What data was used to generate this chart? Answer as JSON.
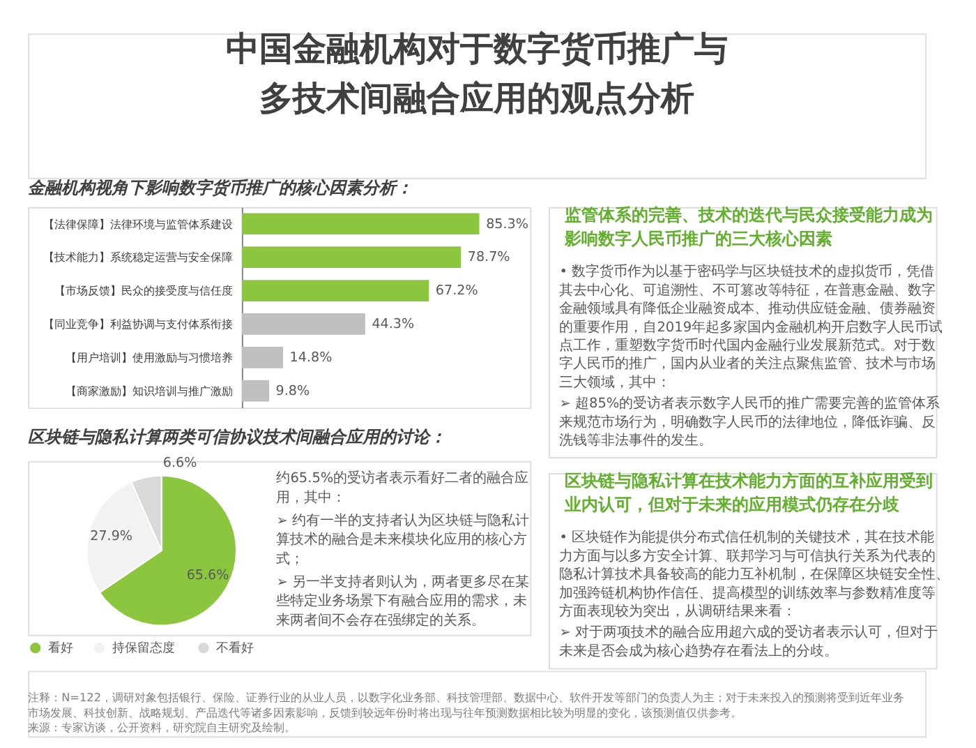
{
  "chart_data": [
    {
      "type": "bar",
      "orientation": "horizontal",
      "title": "中国金融机构对于数字货币推广与多技术间融合应用的观点分析",
      "subtitle": "金融机构视角下影响数字货币推广的核心因素分析：",
      "categories": [
        "【法律保障】法律环境与监管体系建设",
        "【技术能力】系统稳定运营与安全保障",
        "【市场反馈】民众的接受度与信任度",
        "【同业竞争】利益协调与支付体系衔接",
        "【用户培训】使用激励与习惯培养",
        "【商家激励】知识培训与推广激励"
      ],
      "values": [
        85.3,
        78.7,
        67.2,
        44.3,
        14.8,
        9.8
      ],
      "colors": [
        "#8cc63f",
        "#8cc63f",
        "#8cc63f",
        "#bfbfbf",
        "#bfbfbf",
        "#bfbfbf"
      ],
      "value_labels": [
        "85.3%",
        "78.7%",
        "67.2%",
        "44.3%",
        "14.8%",
        "9.8%"
      ],
      "tick_labels": "y",
      "annotations": [
        "注释：N=122，调研对象包括银行、保险、证券行业的从业人员，以数字化业务部、科技管理部、数据中心、软件开发等部门的负责人为主；对于未来投入的预测将受到近年业务市场发展、科技创新、战略规划、产品迭代等诸多因素影响，反馈到较远年份时将出现与往年预测数据相比较为明显的变化，该预测值仅供参考。",
        "来源：专家访谈，公开资料，研究院自主研究及绘制。"
      ]
    },
    {
      "type": "pie",
      "title": "区块链与隐私计算两类可信协议技术间融合应用的讨论：",
      "categories": [
        "看好",
        "持保留态度",
        "不看好"
      ],
      "values": [
        65.6,
        27.9,
        6.6
      ],
      "colors": [
        "#8cc63f",
        "#f2f2f2",
        "#d9d9d9"
      ],
      "value_labels": [
        "65.6%",
        "27.9%",
        "6.6%"
      ],
      "legend": "bottom",
      "annotations": [
        "约65.5%的受访者表示看好二者的融合应用，其中：",
        "➢ 约有一半的支持者认为区块链与隐私计算技术的融合是未来模块化应用的核心方式；",
        "➢ 另一半支持者则认为，两者更多尽在某些特定业务场景下有融合应用的需求，未来两者间不会存在强绑定的关系。"
      ]
    },
    {
      "type": "other",
      "title": "监管体系的完善、技术的迭代与民众接受能力成为影响数字人民币推广的三大核心因素",
      "annotations": [
        "• 数字货币作为以基于密码学与区块链技术的虚拟货币，凭借其去中心化、可追溯性、不可篡改等特征，在普惠金融、数字金融领域具有降低企业融资成本、推动供应链金融、债券融资的重要作用，自2019年起多家国内金融机构开启数字人民币试点工作，重塑数字货币时代国内金融行业发展新范式。对于数字人民币的推广，国内从业者的关注点聚焦监管、技术与市场三大领域，其中：",
        "➢ 超85%的受访者表示数字人民币的推广需要完善的监管体系来规范市场行为，明确数字人民币的法律地位，降低诈骗、反洗钱等非法事件的发生。"
      ]
    },
    {
      "type": "other",
      "title": "区块链与隐私计算在技术能力方面的互补应用受到业内认可，但对于未来的应用模式仍存在分歧",
      "annotations": [
        "• 区块链作为能提供分布式信任机制的关键技术，其在技术能力方面与以多方安全计算、联邦学习与可信执行关系为代表的隐私计算技术具备较高的能力互补机制，在保障区块链安全性、加强跨链机构协作信任、提高模型的训练效率与参数精准度等方面表现较为突出，从调研结果来看：",
        "➢ 对于两项技术的融合应用超六成的受访者表示认可，但对于未来是否会成为核心趋势存在看法上的分歧。"
      ]
    }
  ]
}
